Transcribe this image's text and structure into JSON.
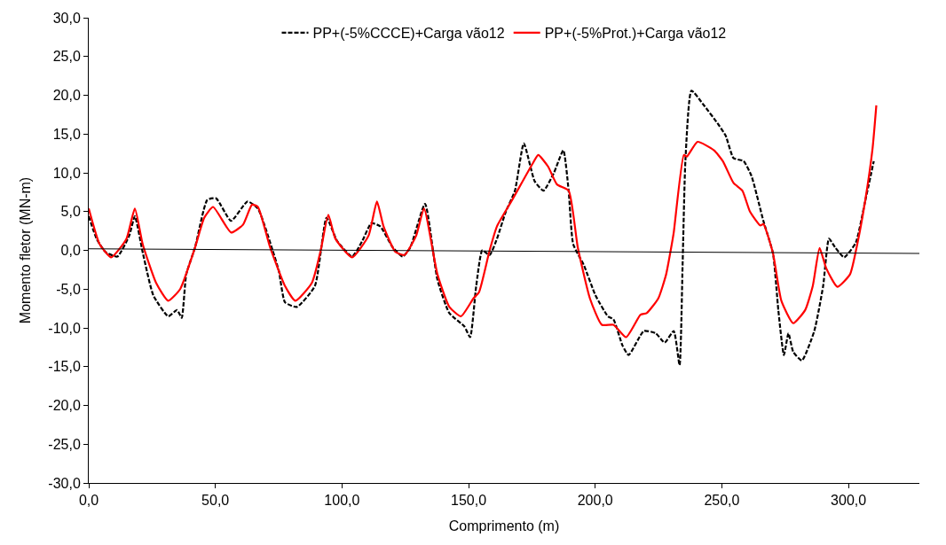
{
  "chart_data": {
    "type": "line",
    "xlabel": "Comprimento (m)",
    "ylabel": "Momento fletor (MN-m)",
    "xlim": [
      0,
      328
    ],
    "ylim": [
      -30,
      30
    ],
    "xticks": [
      {
        "value": 0,
        "label": "0,0"
      },
      {
        "value": 50,
        "label": "50,0"
      },
      {
        "value": 100,
        "label": "100,0"
      },
      {
        "value": 150,
        "label": "150,0"
      },
      {
        "value": 200,
        "label": "200,0"
      },
      {
        "value": 250,
        "label": "250,0"
      },
      {
        "value": 300,
        "label": "300,0"
      }
    ],
    "yticks": [
      {
        "value": -30,
        "label": "-30,0"
      },
      {
        "value": -25,
        "label": "-25,0"
      },
      {
        "value": -20,
        "label": "-20,0"
      },
      {
        "value": -15,
        "label": "-15,0"
      },
      {
        "value": -10,
        "label": "-10,0"
      },
      {
        "value": -5,
        "label": "-5,0"
      },
      {
        "value": 0,
        "label": "0,0"
      },
      {
        "value": 5,
        "label": "5,0"
      },
      {
        "value": 10,
        "label": "10,0"
      },
      {
        "value": 15,
        "label": "15,0"
      },
      {
        "value": 20,
        "label": "20,0"
      },
      {
        "value": 25,
        "label": "25,0"
      },
      {
        "value": 30,
        "label": "30,0"
      }
    ],
    "legend": "top",
    "marker": "none",
    "series": [
      {
        "name": "PP+(-5%CCCE)+Carga vão12",
        "color": "#000000",
        "line_style": "dashed",
        "x": [
          0,
          3.1,
          6.6,
          11.3,
          16,
          18.2,
          21.4,
          25.5,
          31.4,
          34.9,
          36.7,
          38.5,
          42,
          46.8,
          50.3,
          56.2,
          62.7,
          66.8,
          72.6,
          75.1,
          77.5,
          82.2,
          89.3,
          93.9,
          98.1,
          104,
          108,
          111.6,
          115.1,
          120,
          124,
          127,
          132.8,
          137.7,
          142.4,
          148.3,
          150.6,
          153,
          155.4,
          158.3,
          161.2,
          164.7,
          168.3,
          171.8,
          176.1,
          179.6,
          183.7,
          187.4,
          189.5,
          191.3,
          195.5,
          200.1,
          205,
          207.2,
          210.8,
          213.2,
          219.2,
          223.9,
          227.4,
          231,
          233.3,
          234.5,
          235.6,
          238,
          242.7,
          248.7,
          251.5,
          254.6,
          258.6,
          261.7,
          266.4,
          270.2,
          272.3,
          274.5,
          276.3,
          278.2,
          281.6,
          286.5,
          290,
          292.3,
          294.7,
          298.3,
          302.9,
          306.5,
          310
        ],
        "values": [
          4.4,
          1.5,
          -0.2,
          -0.8,
          1.9,
          4.4,
          -0.4,
          -5.8,
          -8.5,
          -7.7,
          -8.7,
          -3.1,
          0.4,
          6.5,
          6.7,
          3.8,
          6.3,
          5.4,
          0,
          -2.7,
          -6.7,
          -7.3,
          -4.6,
          4.2,
          1.2,
          -0.8,
          1.2,
          3.5,
          3.1,
          0.4,
          -0.8,
          0.4,
          6.0,
          -3.8,
          -8.1,
          -9.8,
          -11.2,
          -4.6,
          0,
          -0.6,
          1.5,
          5.0,
          7.7,
          13.8,
          8.9,
          7.7,
          10,
          12.9,
          7.7,
          0.8,
          -1.9,
          -5.8,
          -8.5,
          -8.9,
          -12.3,
          -13.5,
          -10.4,
          -10.7,
          -11.9,
          -10.4,
          -14.8,
          -1.9,
          11.5,
          20.6,
          18.8,
          16.2,
          14.8,
          11.9,
          11.5,
          9.6,
          3.8,
          -0.4,
          -7.7,
          -13.5,
          -10.7,
          -13.1,
          -14.2,
          -10.4,
          -4.6,
          1.5,
          0.4,
          -0.9,
          1.0,
          6.2,
          11.5
        ]
      },
      {
        "name": "PP+(-5%Prot.)+Carga vão12",
        "color": "#ff0000",
        "line_style": "solid",
        "x": [
          0,
          4.3,
          8.9,
          14.9,
          18.2,
          21.3,
          26.6,
          31.4,
          36.1,
          42,
          45.6,
          49.1,
          56.2,
          60.9,
          64.5,
          66.8,
          71.6,
          77.5,
          81.6,
          88.1,
          91.6,
          94.6,
          97.4,
          104,
          110.5,
          113.8,
          116.4,
          121.1,
          124.7,
          129.3,
          132.4,
          137.7,
          142.4,
          147,
          151.9,
          154.1,
          158.3,
          161.2,
          167.2,
          175.3,
          177.5,
          181.4,
          184.9,
          189.5,
          193.1,
          197.9,
          202.6,
          207.2,
          212.2,
          217.9,
          220.3,
          224.9,
          228,
          229.8,
          231,
          235,
          236.2,
          240.4,
          246.9,
          250.4,
          254.6,
          258.1,
          261.1,
          265.2,
          266.4,
          270.2,
          273.5,
          278.2,
          282.9,
          285.9,
          288.6,
          291.2,
          295.6,
          300.6,
          303.6,
          306.5,
          309.5,
          311
        ],
        "values": [
          5.4,
          0.8,
          -0.9,
          1.5,
          5.4,
          0.8,
          -4.2,
          -6.5,
          -5.0,
          0.4,
          4.2,
          5.6,
          2.3,
          3.3,
          5.9,
          5.6,
          0.4,
          -4.6,
          -6.5,
          -4.2,
          0,
          4.6,
          1.5,
          -0.9,
          1.9,
          6.3,
          3.1,
          -0.2,
          -0.6,
          1.9,
          5.4,
          -3.1,
          -7.3,
          -8.5,
          -6.2,
          -5.4,
          0,
          3.1,
          6.5,
          11.2,
          12.3,
          10.8,
          8.5,
          7.7,
          0.4,
          -6.2,
          -9.6,
          -9.6,
          -11.2,
          -8.3,
          -8.1,
          -6.2,
          -3.1,
          0,
          2.3,
          12.3,
          12.1,
          14.0,
          12.9,
          11.5,
          8.7,
          7.7,
          5.0,
          3.2,
          3.4,
          -0.4,
          -6.5,
          -9.4,
          -7.7,
          -4.6,
          0.3,
          -2.3,
          -4.7,
          -3.1,
          1.0,
          6.2,
          13.1,
          18.7
        ]
      },
      {
        "color": "#000000",
        "line_style": "solid",
        "x": [
          0,
          328
        ],
        "values": [
          0.2,
          -0.4
        ]
      }
    ]
  }
}
